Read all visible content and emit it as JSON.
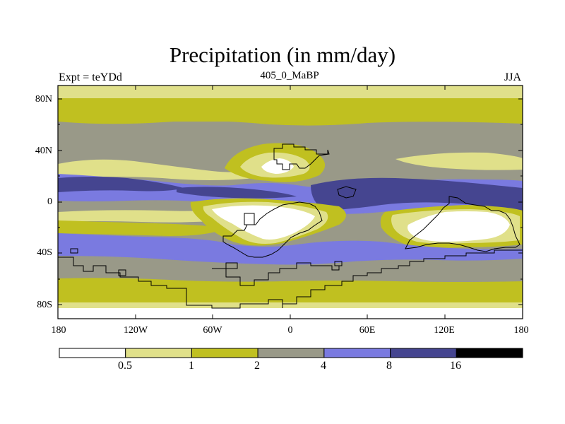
{
  "title": "Precipitation (in mm/day)",
  "left_string": "Expt = teYDd",
  "center_string": "405_0_MaBP",
  "right_string": "JJA",
  "lat_labels": [
    "80N",
    "40N",
    "0",
    "40S",
    "80S"
  ],
  "lon_labels": [
    "180",
    "120W",
    "60W",
    "0",
    "60E",
    "120E",
    "180"
  ],
  "colorbar": {
    "levels": [
      "0.5",
      "1",
      "2",
      "4",
      "8",
      "16"
    ],
    "colors": [
      "#ffffff",
      "#e0e08a",
      "#c0c020",
      "#999988",
      "#7a7ae0",
      "#454590",
      "#000000"
    ]
  }
}
